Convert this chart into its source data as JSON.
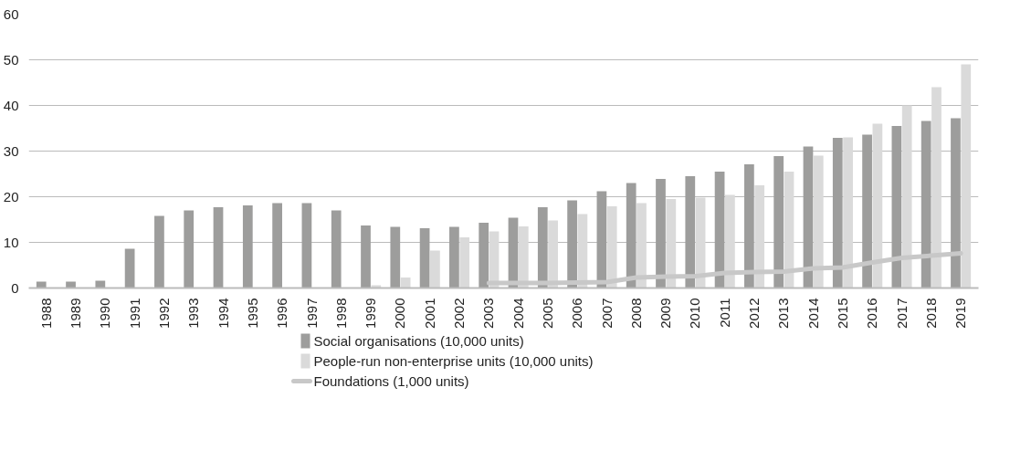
{
  "chart_data": {
    "type": "bar",
    "categories": [
      "1988",
      "1989",
      "1990",
      "1991",
      "1992",
      "1993",
      "1994",
      "1995",
      "1996",
      "1997",
      "1998",
      "1999",
      "2000",
      "2001",
      "2002",
      "2003",
      "2004",
      "2005",
      "2006",
      "2007",
      "2008",
      "2009",
      "2010",
      "2011",
      "2012",
      "2013",
      "2014",
      "2015",
      "2016",
      "2017",
      "2018",
      "2019"
    ],
    "series": [
      {
        "name": "Social organisations (10,000 units)",
        "color": "#9d9d9c",
        "values": [
          1.4,
          1.4,
          1.6,
          8.6,
          15.8,
          17.0,
          17.7,
          18.1,
          18.6,
          18.6,
          17.0,
          13.7,
          13.4,
          13.1,
          13.4,
          14.3,
          15.4,
          17.7,
          19.2,
          21.2,
          23.0,
          23.9,
          24.5,
          25.5,
          27.1,
          28.9,
          31.0,
          32.9,
          33.6,
          35.5,
          36.6,
          37.2
        ]
      },
      {
        "name": "People-run non-enterprise units (10,000 units)",
        "color": "#dadada",
        "values": [
          null,
          null,
          null,
          null,
          null,
          null,
          null,
          null,
          null,
          null,
          null,
          0.6,
          2.3,
          8.2,
          11.1,
          12.4,
          13.5,
          14.8,
          16.2,
          17.9,
          18.6,
          19.5,
          19.8,
          20.4,
          22.5,
          25.5,
          29.0,
          33.0,
          36.0,
          40.0,
          44.0,
          49.0
        ]
      },
      {
        "name": "Foundations (1,000 units)",
        "type": "line",
        "color": "#c8c8c8",
        "values": [
          null,
          null,
          null,
          null,
          null,
          null,
          null,
          null,
          null,
          null,
          null,
          null,
          null,
          null,
          null,
          1.1,
          1.1,
          1.1,
          1.2,
          1.3,
          2.3,
          2.5,
          2.6,
          3.3,
          3.5,
          3.6,
          4.3,
          4.5,
          5.6,
          6.6,
          7.1,
          7.6
        ]
      }
    ],
    "ylim": [
      0,
      60
    ],
    "yticks": [
      0,
      10,
      20,
      30,
      40,
      50,
      60
    ],
    "grid": "y",
    "legend": "bottom",
    "line_style": "solid",
    "marker": "none"
  }
}
